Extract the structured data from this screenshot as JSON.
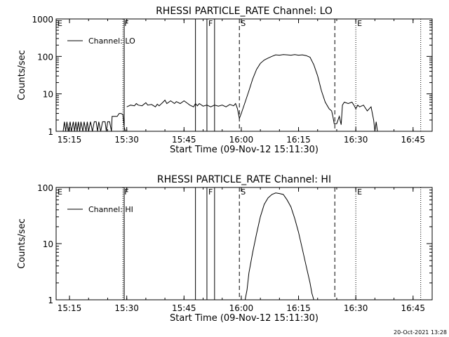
{
  "chart_data": [
    {
      "type": "line",
      "title": "RHESSI PARTICLE_RATE Channel: LO",
      "xlabel": "Start Time (09-Nov-12 15:11:30)",
      "ylabel": "Counts/sec",
      "xlim": [
        "15:11:30",
        "16:50"
      ],
      "ylim": [
        1,
        1000
      ],
      "yscale": "log",
      "xticks": [
        "15:15",
        "15:30",
        "15:45",
        "16:00",
        "16:15",
        "16:30",
        "16:45"
      ],
      "yticks": [
        "1",
        "10",
        "100",
        "1000"
      ],
      "legend": {
        "placement": "top-left",
        "entries": [
          "Channel: LO"
        ]
      },
      "markers": [
        {
          "label": "E",
          "time": "15:11:30",
          "style": "none"
        },
        {
          "label": "F",
          "time": "15:29",
          "style": "dotted"
        },
        {
          "label": "",
          "time": "15:29:20",
          "style": "solid"
        },
        {
          "label": "",
          "time": "15:48",
          "style": "solid"
        },
        {
          "label": "F",
          "time": "15:51",
          "style": "solid"
        },
        {
          "label": "",
          "time": "15:53",
          "style": "solid"
        },
        {
          "label": "S",
          "time": "15:59:30",
          "style": "dashed"
        },
        {
          "label": "",
          "time": "16:24:30",
          "style": "dashed"
        },
        {
          "label": "E",
          "time": "16:30",
          "style": "dotted"
        },
        {
          "label": "",
          "time": "16:47",
          "style": "dotted"
        }
      ],
      "series": [
        {
          "name": "Channel: LO",
          "gaps": true,
          "points": [
            [
              "15:13:20",
              1
            ],
            [
              "15:13:40",
              1.8
            ],
            [
              "15:14:00",
              1
            ],
            [
              "15:14:20",
              1.8
            ],
            [
              "15:14:40",
              1
            ],
            [
              "15:15:10",
              1.8
            ],
            [
              "15:15:30",
              1
            ],
            [
              "15:16:00",
              1.8
            ],
            [
              "15:16:20",
              1
            ],
            [
              "15:16:40",
              1.8
            ],
            [
              "15:17:00",
              1
            ],
            [
              "15:17:20",
              1.8
            ],
            [
              "15:17:40",
              1
            ],
            [
              "15:18:00",
              1.8
            ],
            [
              "15:18:30",
              1
            ],
            [
              "15:18:50",
              1.8
            ],
            [
              "15:19:20",
              1
            ],
            [
              "15:19:40",
              1.8
            ],
            [
              "15:20:00",
              1
            ],
            [
              "15:20:30",
              1.8
            ],
            [
              "15:21:00",
              1
            ],
            [
              "15:21:30",
              1.8
            ],
            [
              "15:22:00",
              1.8
            ],
            [
              "15:22:20",
              1
            ],
            [
              "15:22:40",
              1.8
            ],
            [
              "15:23:10",
              1
            ],
            [
              "15:23:40",
              1.8
            ],
            [
              "15:24:20",
              1.8
            ],
            [
              "15:24:40",
              1
            ],
            [
              "15:25:00",
              1.8
            ],
            [
              "15:25:30",
              1.8
            ],
            [
              "15:26:00",
              1
            ],
            [
              "15:26:10",
              2.5
            ],
            [
              "15:27:30",
              2.5
            ],
            [
              "15:28:00",
              3
            ],
            [
              "15:28:30",
              3
            ],
            [
              "15:29:00",
              2.8
            ],
            [
              "15:29:20",
              1.3
            ],
            [
              "15:29:40",
              1
            ],
            null,
            [
              "15:30:00",
              4.5
            ],
            [
              "15:31:00",
              5
            ],
            [
              "15:32:00",
              4.8
            ],
            [
              "15:32:30",
              5.5
            ],
            [
              "15:33:00",
              5
            ],
            [
              "15:34:00",
              4.8
            ],
            [
              "15:35:00",
              5.8
            ],
            [
              "15:35:30",
              5
            ],
            [
              "15:36:30",
              5.2
            ],
            [
              "15:37:30",
              4.5
            ],
            [
              "15:38:00",
              5.3
            ],
            [
              "15:38:30",
              4.8
            ],
            [
              "15:39:30",
              6
            ],
            [
              "15:40:00",
              6.8
            ],
            [
              "15:40:30",
              5.5
            ],
            [
              "15:41:30",
              6.5
            ],
            [
              "15:42:00",
              6
            ],
            [
              "15:42:30",
              5.5
            ],
            [
              "15:43:00",
              6.2
            ],
            [
              "15:44:00",
              5.5
            ],
            [
              "15:45:00",
              6.5
            ],
            [
              "15:46:00",
              5.5
            ],
            [
              "15:46:30",
              5
            ],
            [
              "15:47:30",
              4.5
            ],
            [
              "15:48:00",
              5.5
            ],
            [
              "15:48:30",
              4.8
            ],
            [
              "15:49:00",
              5.5
            ],
            [
              "15:50:00",
              4.7
            ],
            [
              "15:51:00",
              5
            ],
            [
              "15:52:00",
              4.5
            ],
            [
              "15:53:00",
              5
            ],
            [
              "15:54:00",
              4.7
            ],
            [
              "15:55:00",
              5
            ],
            [
              "15:56:00",
              4.5
            ],
            [
              "15:57:00",
              5.2
            ],
            [
              "15:58:00",
              4.8
            ],
            [
              "15:58:30",
              5.5
            ],
            [
              "15:59:00",
              4
            ],
            [
              "15:59:30",
              2.2
            ],
            [
              "16:00:00",
              3
            ],
            [
              "16:01:00",
              6
            ],
            [
              "16:02:00",
              12
            ],
            [
              "16:03:00",
              25
            ],
            [
              "16:04:00",
              45
            ],
            [
              "16:05:00",
              65
            ],
            [
              "16:06:00",
              80
            ],
            [
              "16:07:00",
              90
            ],
            [
              "16:08:00",
              100
            ],
            [
              "16:09:00",
              110
            ],
            [
              "16:10:00",
              108
            ],
            [
              "16:11:00",
              112
            ],
            [
              "16:12:00",
              110
            ],
            [
              "16:13:00",
              108
            ],
            [
              "16:14:00",
              112
            ],
            [
              "16:15:00",
              108
            ],
            [
              "16:16:00",
              110
            ],
            [
              "16:17:00",
              105
            ],
            [
              "16:18:00",
              95
            ],
            [
              "16:19:00",
              60
            ],
            [
              "16:20:00",
              30
            ],
            [
              "16:21:00",
              12
            ],
            [
              "16:22:00",
              6
            ],
            [
              "16:23:00",
              4
            ],
            [
              "16:23:40",
              3.5
            ],
            [
              "16:24:00",
              2.5
            ],
            [
              "16:24:20",
              1.6
            ],
            [
              "16:25:00",
              1.6
            ],
            [
              "16:25:40",
              2.5
            ],
            [
              "16:26:10",
              1.5
            ],
            [
              "16:26:30",
              5
            ],
            [
              "16:27:00",
              6
            ],
            [
              "16:28:00",
              5.5
            ],
            [
              "16:29:00",
              6
            ],
            [
              "16:29:30",
              5
            ],
            [
              "16:30:00",
              4
            ],
            [
              "16:30:30",
              5
            ],
            [
              "16:31:00",
              4.5
            ],
            [
              "16:32:00",
              5
            ],
            [
              "16:33:00",
              3.5
            ],
            [
              "16:34:00",
              4.5
            ],
            [
              "16:34:40",
              2
            ],
            [
              "16:35:00",
              1
            ],
            [
              "16:35:20",
              1.8
            ],
            [
              "16:35:40",
              1
            ]
          ]
        }
      ]
    },
    {
      "type": "line",
      "title": "RHESSI PARTICLE_RATE Channel: HI",
      "xlabel": "Start Time (09-Nov-12 15:11:30)",
      "ylabel": "Counts/sec",
      "xlim": [
        "15:11:30",
        "16:50"
      ],
      "ylim": [
        1,
        100
      ],
      "yscale": "log",
      "xticks": [
        "15:15",
        "15:30",
        "15:45",
        "16:00",
        "16:15",
        "16:30",
        "16:45"
      ],
      "yticks": [
        "1",
        "10",
        "100"
      ],
      "legend": {
        "placement": "top-left",
        "entries": [
          "Channel: HI"
        ]
      },
      "markers": [
        {
          "label": "E",
          "time": "15:11:30",
          "style": "none"
        },
        {
          "label": "F",
          "time": "15:29",
          "style": "dotted"
        },
        {
          "label": "",
          "time": "15:29:20",
          "style": "solid"
        },
        {
          "label": "",
          "time": "15:48",
          "style": "solid"
        },
        {
          "label": "F",
          "time": "15:51",
          "style": "solid"
        },
        {
          "label": "",
          "time": "15:53",
          "style": "solid"
        },
        {
          "label": "S",
          "time": "15:59:30",
          "style": "dashed"
        },
        {
          "label": "",
          "time": "16:24:30",
          "style": "dashed"
        },
        {
          "label": "E",
          "time": "16:30",
          "style": "dotted"
        },
        {
          "label": "",
          "time": "16:47",
          "style": "dotted"
        }
      ],
      "series": [
        {
          "name": "Channel: HI",
          "gaps": false,
          "points": [
            [
              "16:01:00",
              1
            ],
            [
              "16:01:30",
              1.5
            ],
            [
              "16:02:00",
              3
            ],
            [
              "16:03:00",
              7
            ],
            [
              "16:04:00",
              15
            ],
            [
              "16:05:00",
              30
            ],
            [
              "16:06:00",
              50
            ],
            [
              "16:07:00",
              65
            ],
            [
              "16:08:00",
              75
            ],
            [
              "16:09:00",
              80
            ],
            [
              "16:10:00",
              78
            ],
            [
              "16:11:00",
              75
            ],
            [
              "16:12:00",
              60
            ],
            [
              "16:13:00",
              45
            ],
            [
              "16:14:00",
              28
            ],
            [
              "16:15:00",
              16
            ],
            [
              "16:16:00",
              8
            ],
            [
              "16:17:00",
              4
            ],
            [
              "16:18:00",
              2
            ],
            [
              "16:18:30",
              1.3
            ],
            [
              "16:19:00",
              1
            ]
          ]
        }
      ]
    }
  ],
  "footer": {
    "timestamp": "20-Oct-2021 13:28"
  }
}
